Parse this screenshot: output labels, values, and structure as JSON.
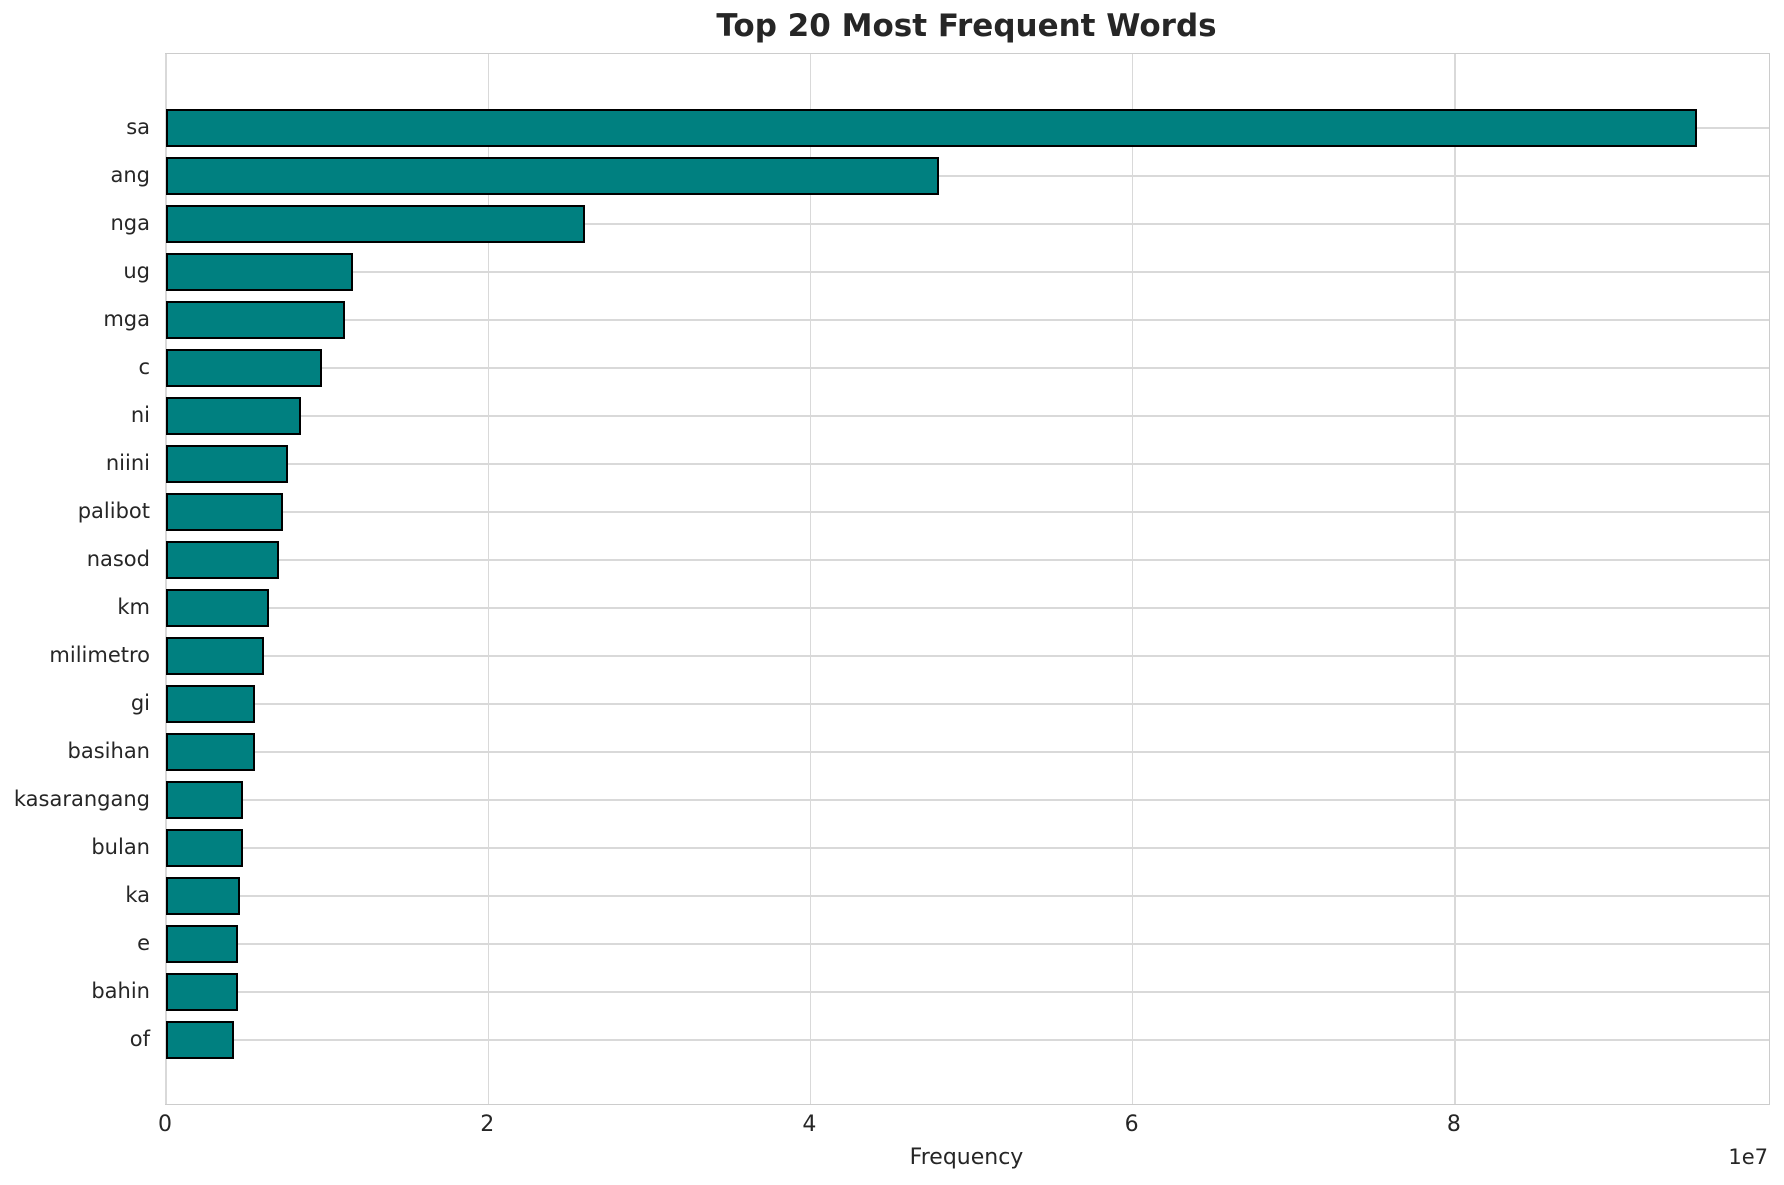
{
  "title": "Top 20 Most Frequent Words",
  "chart_data": {
    "type": "bar",
    "orientation": "horizontal",
    "title": "Top 20 Most Frequent Words",
    "xlabel": "Frequency",
    "ylabel": "",
    "offset_label": "1e7",
    "categories": [
      "sa",
      "ang",
      "nga",
      "ug",
      "mga",
      "c",
      "ni",
      "niini",
      "palibot",
      "nasod",
      "km",
      "milimetro",
      "gi",
      "basihan",
      "kasarangang",
      "bulan",
      "ka",
      "e",
      "bahin",
      "of"
    ],
    "values": [
      95000000,
      48000000,
      26000000,
      11600000,
      11100000,
      9700000,
      8400000,
      7600000,
      7250000,
      7000000,
      6400000,
      6100000,
      5550000,
      5500000,
      4800000,
      4770000,
      4600000,
      4470000,
      4450000,
      4200000
    ],
    "xlim": [
      0,
      99500000
    ],
    "xticks": [
      0,
      20000000,
      40000000,
      60000000,
      80000000
    ],
    "xtick_labels": [
      "0",
      "2",
      "4",
      "6",
      "8"
    ],
    "grid": true,
    "legend": false,
    "bar_color": "#008080",
    "bar_edge_color": "#000000",
    "grid_color": "#d9d9d9",
    "text_color": "#262626"
  }
}
